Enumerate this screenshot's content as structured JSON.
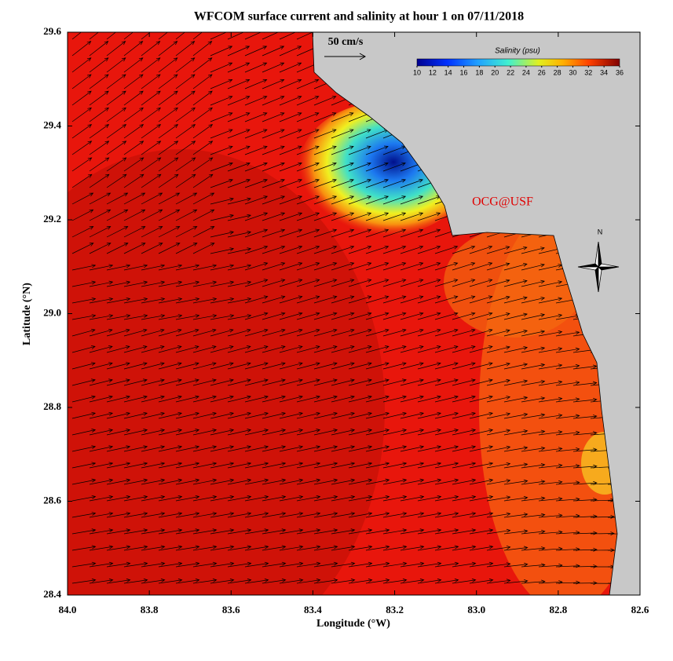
{
  "chart_data": {
    "type": "map",
    "title": "WFCOM surface current and salinity at hour 1 on 07/11/2018",
    "x_label": "Longitude (°W)",
    "y_label": "Latitude (°N)",
    "xlim": [
      84,
      82.6
    ],
    "ylim": [
      28.4,
      29.6
    ],
    "xticks": [
      {
        "value": 84,
        "label": "84.0"
      },
      83.8,
      83.6,
      83.4,
      83.2,
      {
        "value": 83,
        "label": "83.0"
      },
      82.8,
      82.6
    ],
    "yticks": [
      28.4,
      28.6,
      28.8,
      {
        "value": 29,
        "label": "29.0"
      },
      29.2,
      29.4,
      29.6
    ],
    "scale_label": "50 cm/s",
    "colorbar": {
      "title": "Salinity (psu)",
      "lim": [
        10,
        36
      ],
      "ticks": [
        10,
        12,
        14,
        16,
        18,
        20,
        22,
        24,
        26,
        28,
        30,
        32,
        34,
        36
      ]
    },
    "credit": "OCG@USF",
    "north_label": "N"
  }
}
